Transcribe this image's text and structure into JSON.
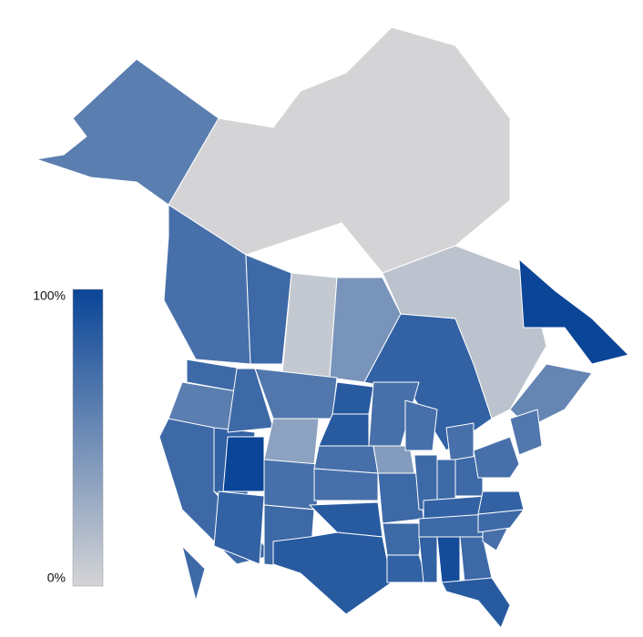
{
  "map": {
    "legend": {
      "range": [
        0,
        100
      ],
      "ticks": [
        {
          "value": 0,
          "label": "0%"
        },
        {
          "value": 100,
          "label": "100%"
        }
      ],
      "colors": [
        "#d4d4d6",
        "#0a4597"
      ]
    },
    "values": [
      60,
      0,
      70,
      75,
      8,
      45,
      80,
      12,
      100,
      55,
      75,
      60,
      75,
      80,
      75,
      65,
      35,
      100,
      70,
      80,
      75,
      85,
      85,
      70,
      70,
      85,
      85,
      70,
      40,
      75,
      75,
      80,
      70,
      70,
      75,
      75,
      75,
      80,
      75,
      80,
      95,
      75,
      85,
      70,
      75,
      80,
      70,
      65,
      75
    ]
  }
}
